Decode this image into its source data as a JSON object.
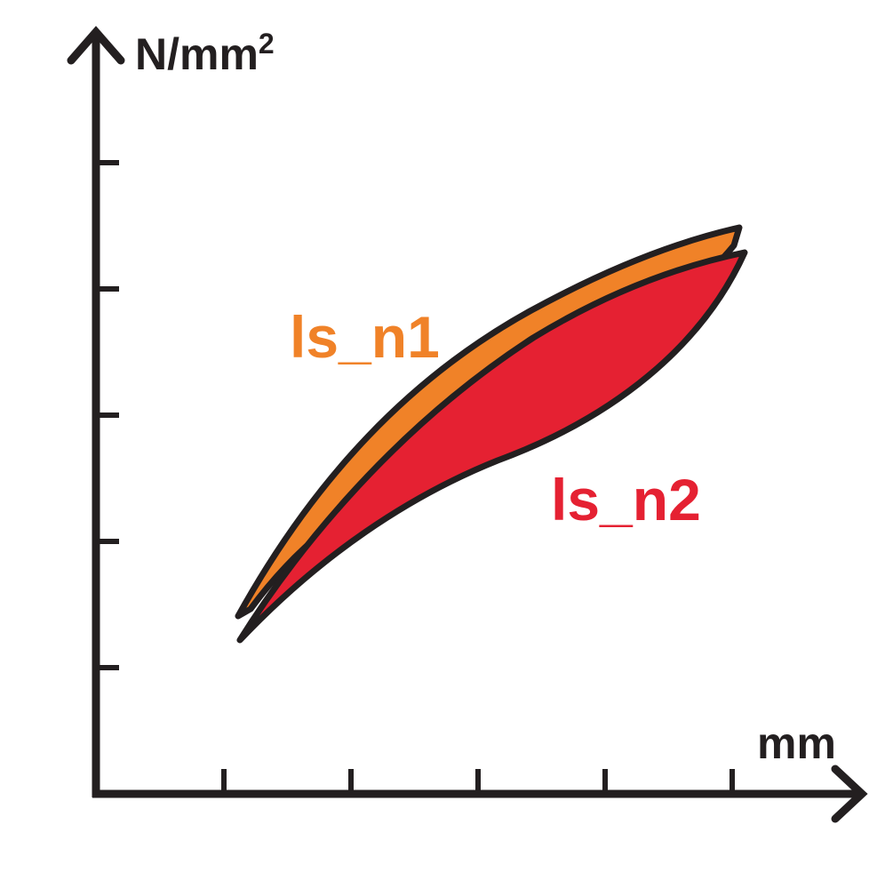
{
  "axes": {
    "y_label": "N/mm",
    "y_label_superscript": "2",
    "x_label": "mm",
    "y_tick_count": 5,
    "x_tick_count": 5
  },
  "loops": [
    {
      "label": "ls_n1",
      "color": "#f08228"
    },
    {
      "label": "ls_n2",
      "color": "#e52132"
    }
  ],
  "colors": {
    "axis": "#231f20",
    "outline": "#231f20"
  }
}
